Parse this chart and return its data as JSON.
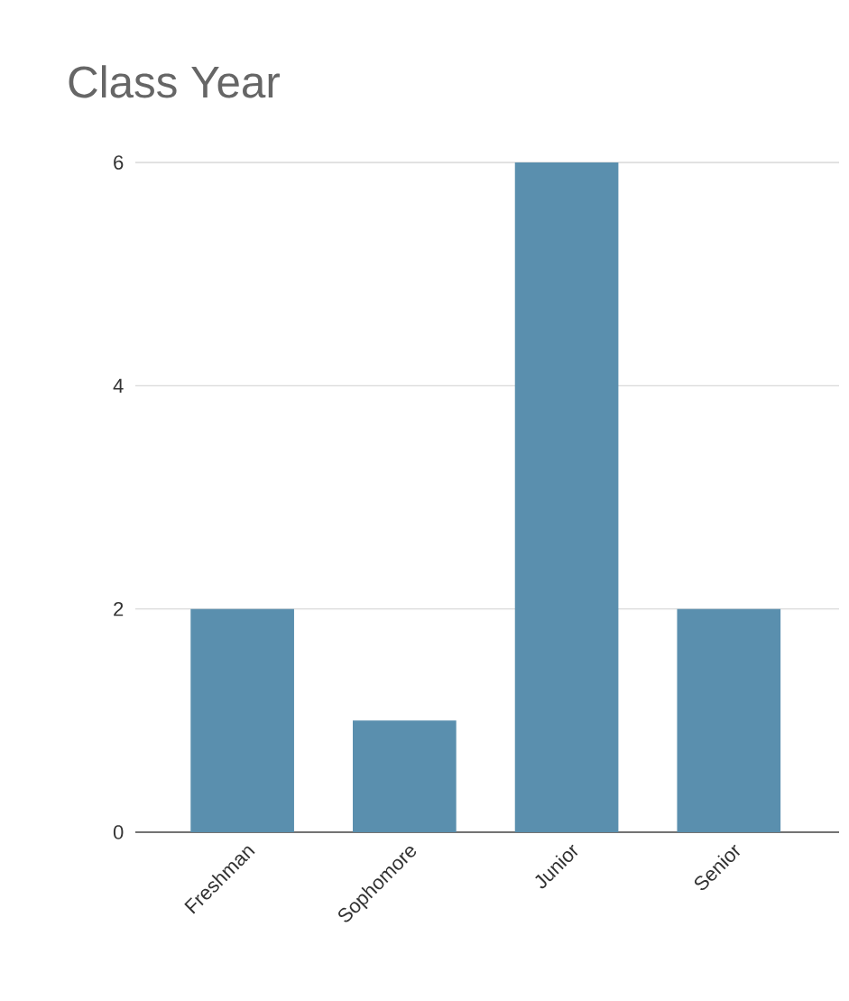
{
  "chart_data": {
    "type": "bar",
    "title": "Class Year",
    "categories": [
      "Freshman",
      "Sophomore",
      "Junior",
      "Senior"
    ],
    "values": [
      2,
      1,
      6,
      2
    ],
    "color": "#5a8fae",
    "ylim": [
      0,
      6
    ],
    "yticks": [
      0,
      2,
      4,
      6
    ],
    "grid": "y"
  }
}
